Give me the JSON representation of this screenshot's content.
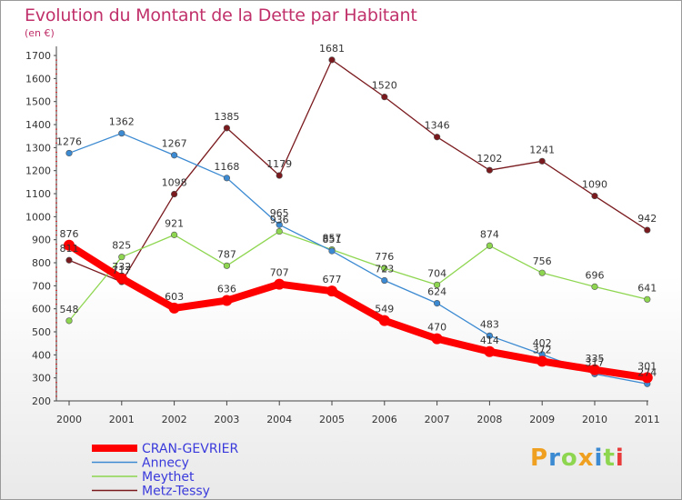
{
  "title": "Evolution du Montant de la Dette par Habitant",
  "subtitle": "(en €)",
  "logo_text": "Proxiti",
  "chart_data": {
    "type": "line",
    "title": "Evolution du Montant de la Dette par Habitant",
    "subtitle": "(en €)",
    "x": [
      "2000",
      "2001",
      "2002",
      "2003",
      "2004",
      "2005",
      "2006",
      "2007",
      "2008",
      "2009",
      "2010",
      "2011"
    ],
    "yticks": [
      200,
      300,
      400,
      500,
      600,
      700,
      800,
      900,
      1000,
      1100,
      1200,
      1300,
      1400,
      1500,
      1600,
      1700
    ],
    "ylim": [
      200,
      1700
    ],
    "grid": false,
    "legend_position": "bottom-left",
    "series": [
      {
        "name": "CRAN-GEVRIER",
        "color": "#ff0000",
        "values": [
          876,
          732,
          603,
          636,
          707,
          677,
          549,
          470,
          414,
          372,
          335,
          301
        ]
      },
      {
        "name": "Annecy",
        "color": "#3c8ad2",
        "values": [
          1276,
          1362,
          1267,
          1168,
          965,
          851,
          723,
          624,
          483,
          402,
          317,
          274
        ]
      },
      {
        "name": "Meythet",
        "color": "#8ed650",
        "values": [
          548,
          825,
          921,
          787,
          936,
          857,
          776,
          704,
          874,
          756,
          696,
          641
        ]
      },
      {
        "name": "Metz-Tessy",
        "color": "#7a1a1e",
        "values": [
          811,
          717,
          1098,
          1385,
          1179,
          1681,
          1520,
          1346,
          1202,
          1241,
          1090,
          942
        ]
      }
    ]
  }
}
